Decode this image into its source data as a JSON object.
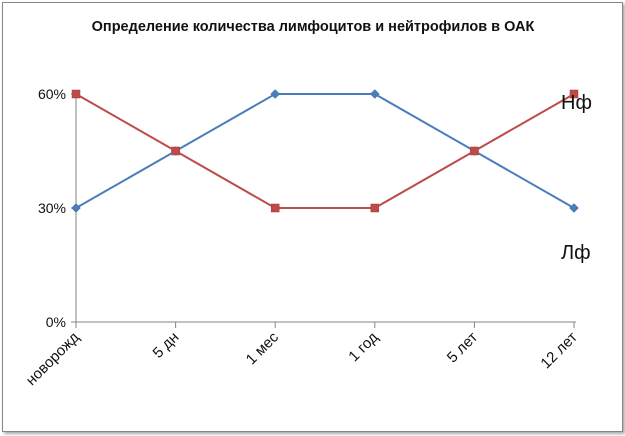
{
  "chart_data": {
    "type": "line",
    "title": "Определение количества лимфоцитов и нейтрофилов в ОАК",
    "categories": [
      "новорожд",
      "5 дн",
      "1 мес",
      "1 год",
      "5 лет",
      "12 лет"
    ],
    "yticks": [
      "0%",
      "30%",
      "60%"
    ],
    "ylim": [
      0,
      60
    ],
    "grid": false,
    "legend": "none",
    "series": [
      {
        "name": "Лф",
        "color": "#4a7ebb",
        "marker": "diamond",
        "values": [
          30,
          45,
          60,
          60,
          45,
          30
        ]
      },
      {
        "name": "Нф",
        "color": "#be4b48",
        "marker": "square",
        "values": [
          60,
          45,
          30,
          30,
          45,
          60
        ]
      }
    ]
  }
}
